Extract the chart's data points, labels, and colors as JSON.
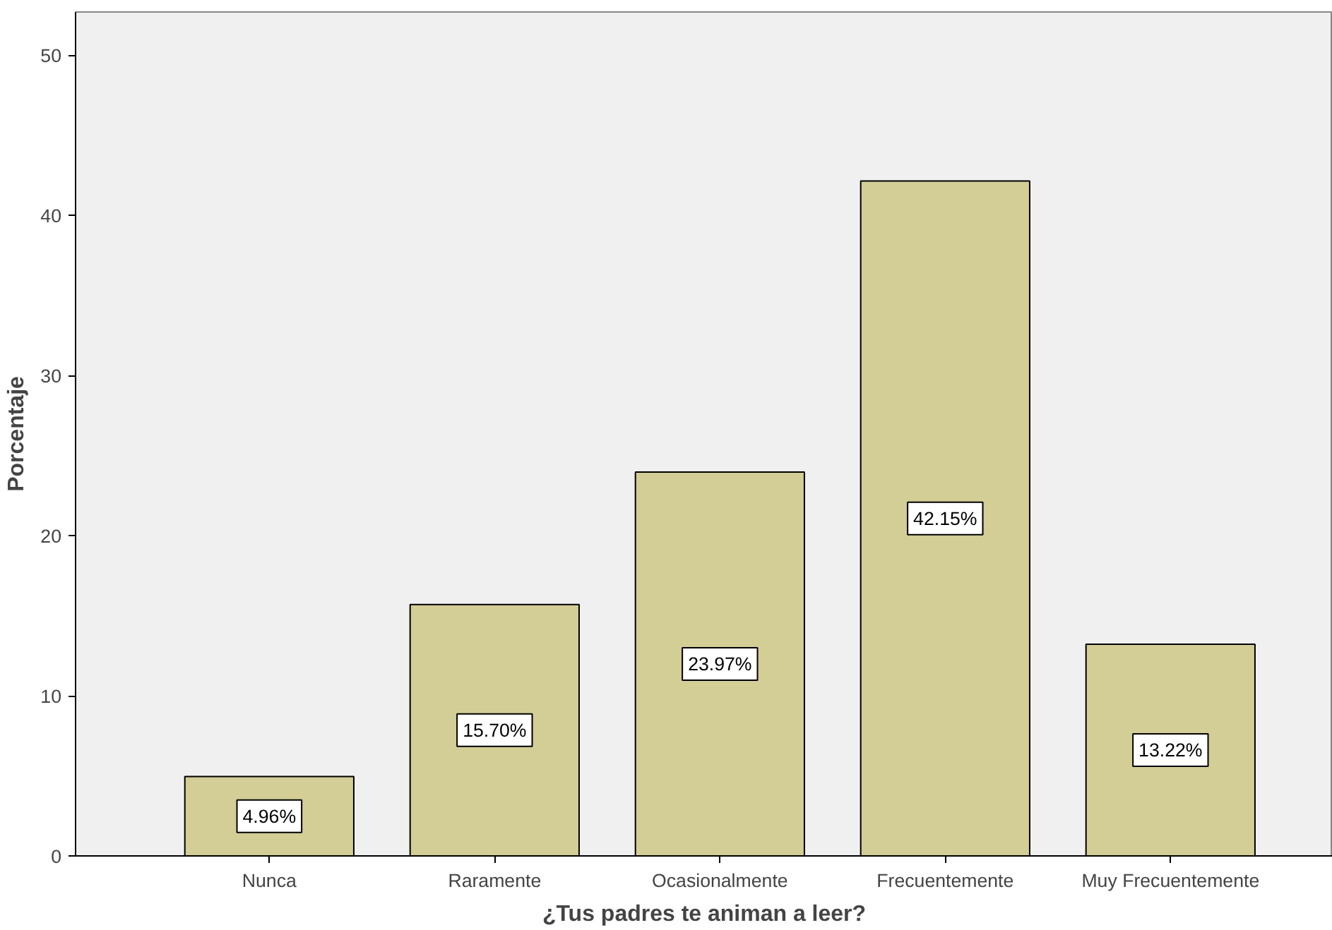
{
  "chart_data": {
    "type": "bar",
    "xlabel": "¿Tus padres te animan a leer?",
    "ylabel": "Porcentaje",
    "categories": [
      "Nunca",
      "Raramente",
      "Ocasionalmente",
      "Frecuentemente",
      "Muy Frecuentemente"
    ],
    "values": [
      4.96,
      15.7,
      23.97,
      42.15,
      13.22
    ],
    "value_labels": [
      "4.96%",
      "15.70%",
      "23.97%",
      "42.15%",
      "13.22%"
    ],
    "color": "#d3cd96",
    "ylim": [
      0,
      52.7
    ],
    "yticks": [
      0,
      10,
      20,
      30,
      40,
      50
    ],
    "grid": false
  }
}
